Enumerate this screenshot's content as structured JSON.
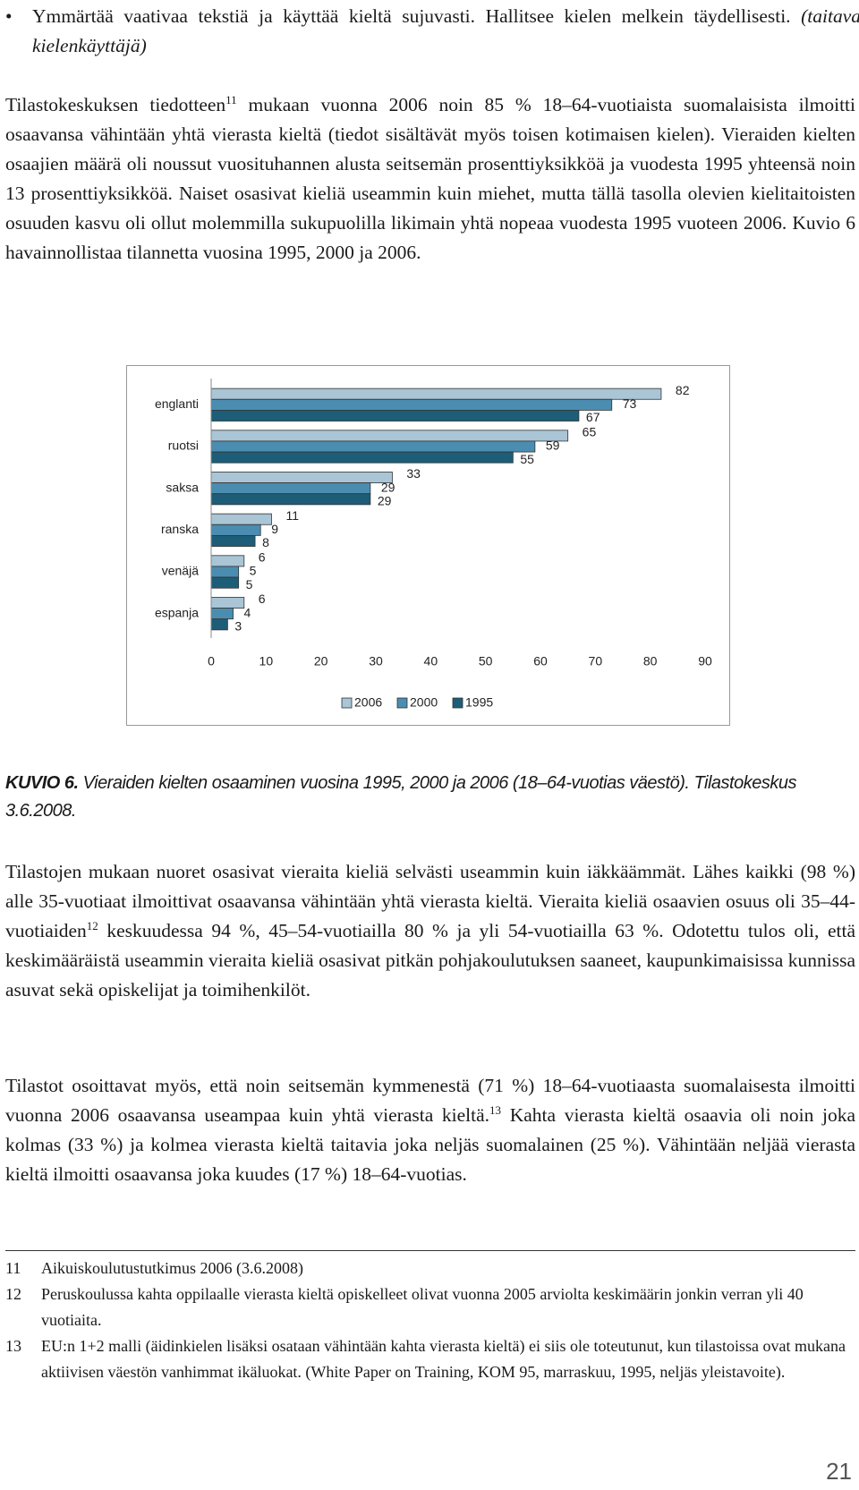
{
  "bullet": {
    "text": "Ymmärtää vaativaa tekstiä ja käyttää kieltä sujuvasti. Hallitsee kielen melkein täydellisesti.",
    "note": "(taitava kielenkäyttäjä)"
  },
  "paragraphs": [
    {
      "parts": [
        "Tilastokeskuksen tiedotteen",
        "mukaan vuonna 2006 noin 85 % 18–64-vuotiaista suomalaisista ilmoitti osaavansa vähintään yhtä vierasta kieltä (tiedot sisältävät myös toisen kotimaisen kielen). Vieraiden kielten osaajien määrä oli noussut vuosituhannen alusta seitsemän prosenttiyksikköä ja vuodesta 1995 yhteensä noin 13 prosenttiyksikköä. Naiset osasivat kieliä useammin kuin miehet, mutta tällä tasolla olevien kielitaitoisten osuuden kasvu oli ollut molemmilla sukupuolilla likimain yhtä nopeaa vuodesta 1995 vuoteen 2006. Kuvio 6 havainnollistaa tilannetta vuosina 1995, 2000 ja 2006."
      ],
      "sup": "11"
    },
    {
      "parts": [
        "Tilastojen mukaan nuoret osasivat vieraita kieliä selvästi useammin kuin iäkkäämmät. Lähes kaikki (98 %) alle 35-vuotiaat ilmoittivat osaavansa vähintään yhtä vierasta kieltä. Vieraita kieliä osaavien osuus oli 35–44-vuotiaiden",
        "keskuudessa 94 %, 45–54-vuotiailla 80 % ja yli 54-vuotiailla 63 %. Odotettu tulos oli, että keskimääräistä useammin vieraita kieliä osasivat pitkän pohjakoulutuksen saaneet, kaupunkimaisissa kunnissa asuvat sekä opiskelijat ja toimihenkilöt."
      ],
      "sup": "12"
    },
    {
      "parts": [
        "Tilastot osoittavat myös, että noin seitsemän kymmenestä (71 %) 18–64-vuotiaasta suomalaisesta ilmoitti vuonna 2006 osaavansa useampaa kuin yhtä vierasta kieltä.",
        "Kahta vierasta kieltä osaavia oli noin joka kolmas (33 %) ja kolmea vierasta kieltä taitavia joka neljäs suomalainen (25 %). Vähintään neljää vierasta kieltä ilmoitti osaavansa joka kuudes (17 %) 18–64-vuotias."
      ],
      "sup": "13"
    }
  ],
  "caption": {
    "label": "KUVIO 6.",
    "text": "Vieraiden kielten osaaminen vuosina 1995, 2000 ja 2006 (18–64-vuotias väestö). Tilastokeskus 3.6.2008."
  },
  "footnotes": [
    {
      "number": "11",
      "text": "Aikuiskoulutustutkimus 2006 (3.6.2008)"
    },
    {
      "number": "12",
      "text": "Peruskoulussa kahta oppilaalle vierasta kieltä opiskelleet olivat vuonna 2005 arviolta keskimäärin jonkin verran yli 40 vuotiaita."
    },
    {
      "number": "13",
      "text": "EU:n 1+2 malli (äidinkielen lisäksi osataan vähintään kahta vierasta kieltä) ei siis ole toteutunut, kun tilastoissa ovat mukana aktiivisen väestön vanhimmat ikäluokat. (White Paper on Training, KOM 95, marraskuu, 1995, neljäs yleistavoite)."
    }
  ],
  "page_number": "21",
  "chart_data": {
    "type": "bar",
    "orientation": "horizontal",
    "categories": [
      "englanti",
      "ruotsi",
      "saksa",
      "ranska",
      "venäjä",
      "espanja"
    ],
    "series": [
      {
        "name": "2006",
        "color": "#a9c5d6",
        "values": [
          82,
          65,
          33,
          11,
          6,
          6
        ]
      },
      {
        "name": "2000",
        "color": "#4a8db0",
        "values": [
          73,
          59,
          29,
          9,
          5,
          4
        ]
      },
      {
        "name": "1995",
        "color": "#1d5d78",
        "values": [
          67,
          55,
          29,
          8,
          5,
          3
        ]
      }
    ],
    "xlim": [
      0,
      90
    ],
    "xticks": [
      0,
      10,
      20,
      30,
      40,
      50,
      60,
      70,
      80,
      90
    ],
    "legend": "bottom"
  }
}
